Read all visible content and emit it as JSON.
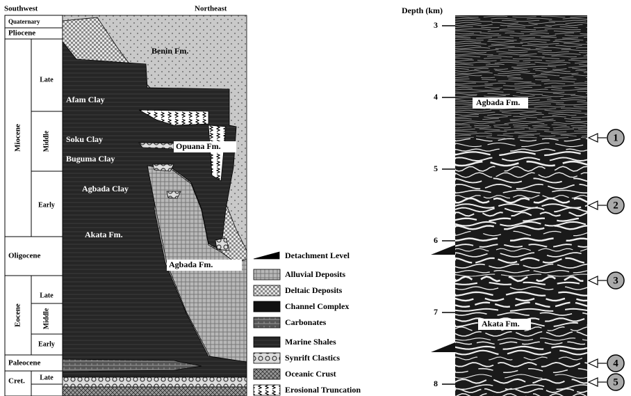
{
  "stratigraphy": {
    "direction_left": "Southwest",
    "direction_right": "Northeast",
    "chronostratigraphy": [
      "Quaternary",
      "Pliocene",
      "Miocene",
      "Late",
      "Middle",
      "Early",
      "Oligocene",
      "Eocene",
      "Late",
      "Middle",
      "Early",
      "Paleocene",
      "Cret.",
      "Late"
    ],
    "formations": [
      "Benin Fm.",
      "Afam Clay",
      "Soku Clay",
      "Opuana Fm.",
      "Buguma Clay",
      "Agbada Clay",
      "Akata Fm.",
      "Agbada Fm."
    ]
  },
  "legend": [
    "Detachment Level",
    "Alluvial Deposits",
    "Deltaic Deposits",
    "Channel Complex",
    "Carbonates",
    "Marine Shales",
    "Synrift Clastics",
    "Oceanic Crust",
    "Erosional Truncation"
  ],
  "seismic": {
    "axis_label": "Depth (km)",
    "depth_ticks": [
      3,
      4,
      5,
      6,
      7,
      8
    ],
    "formations": [
      "Agbada Fm.",
      "Akata Fm."
    ],
    "markers": [
      1,
      2,
      3,
      4,
      5
    ]
  }
}
